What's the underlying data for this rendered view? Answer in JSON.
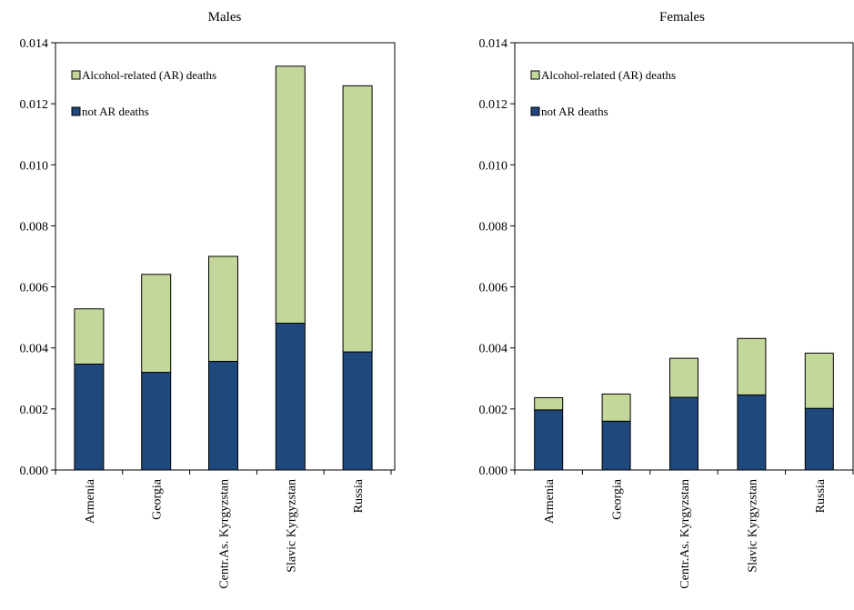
{
  "chart_data": [
    {
      "type": "bar",
      "stacked": true,
      "title": "Males",
      "categories": [
        "Armenia",
        "Georgia",
        "Centr.As. Kyrgyzstan",
        "Slavic Kyrgyzstan",
        "Russia"
      ],
      "series": [
        {
          "name": "not AR deaths",
          "color": "#1f497d",
          "values": [
            0.00347,
            0.0032,
            0.00356,
            0.00481,
            0.00387
          ]
        },
        {
          "name": "Alcohol-related (AR) deaths",
          "color": "#c4d79b",
          "values": [
            0.00181,
            0.00321,
            0.00344,
            0.00842,
            0.00872
          ]
        }
      ],
      "legend": "top-left",
      "ylim": [
        0,
        0.014
      ],
      "yticks": [
        "0.000",
        "0.002",
        "0.004",
        "0.006",
        "0.008",
        "0.010",
        "0.012",
        "0.014"
      ]
    },
    {
      "type": "bar",
      "stacked": true,
      "title": "Females",
      "categories": [
        "Armenia",
        "Georgia",
        "Centr.As. Kyrgyzstan",
        "Slavic Kyrgyzstan",
        "Russia"
      ],
      "series": [
        {
          "name": "not AR deaths",
          "color": "#1f497d",
          "values": [
            0.00197,
            0.0016,
            0.00238,
            0.00246,
            0.00202
          ]
        },
        {
          "name": "Alcohol-related (AR) deaths",
          "color": "#c4d79b",
          "values": [
            0.0004,
            0.00089,
            0.00128,
            0.00185,
            0.00181
          ]
        }
      ],
      "legend": "top-left",
      "ylim": [
        0,
        0.014
      ],
      "yticks": [
        "0.000",
        "0.002",
        "0.004",
        "0.006",
        "0.008",
        "0.010",
        "0.012",
        "0.014"
      ]
    }
  ]
}
